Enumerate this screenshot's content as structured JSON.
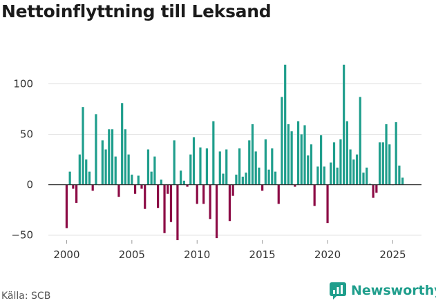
{
  "title": "Nettoinflyttning till Leksand",
  "source": "Källa: SCB",
  "brand": {
    "name": "Newsworthy",
    "icon": "newsworthy-logo-icon"
  },
  "colors": {
    "positive": "#1f9e8c",
    "negative": "#8c0b45",
    "brand": "#1f9e8c",
    "grid": "#dddddd",
    "zero": "#333333"
  },
  "chart_data": {
    "type": "bar",
    "title": "Nettoinflyttning till Leksand",
    "xlabel": "",
    "ylabel": "",
    "ylim": [
      -55,
      125
    ],
    "xlim": [
      1998.6,
      2027.2
    ],
    "y_ticks": [
      -50,
      0,
      50,
      100
    ],
    "x_ticks": [
      2000,
      2005,
      2010,
      2015,
      2020,
      2025
    ],
    "grid": true,
    "series": [
      {
        "name": "Nettoinflyttning",
        "frequency": "quarterly",
        "start": 2000.0,
        "values": [
          -43,
          13,
          -4,
          -18,
          30,
          77,
          25,
          13,
          -6,
          70,
          0,
          44,
          35,
          55,
          55,
          28,
          -12,
          81,
          55,
          30,
          10,
          -9,
          9,
          -4,
          -24,
          35,
          13,
          28,
          -23,
          5,
          -48,
          -9,
          -37,
          44,
          -55,
          14,
          4,
          -2,
          30,
          47,
          -19,
          37,
          -19,
          36,
          -34,
          63,
          -53,
          33,
          11,
          35,
          -36,
          -11,
          10,
          36,
          8,
          12,
          44,
          60,
          33,
          17,
          -6,
          45,
          15,
          36,
          13,
          -19,
          87,
          119,
          60,
          53,
          -2,
          63,
          50,
          59,
          29,
          40,
          -21,
          18,
          49,
          18,
          -38,
          22,
          42,
          17,
          45,
          119,
          63,
          35,
          25,
          30,
          87,
          12,
          17,
          1,
          -13,
          -8,
          42,
          42,
          60,
          40,
          0,
          62,
          19,
          7
        ]
      }
    ]
  }
}
